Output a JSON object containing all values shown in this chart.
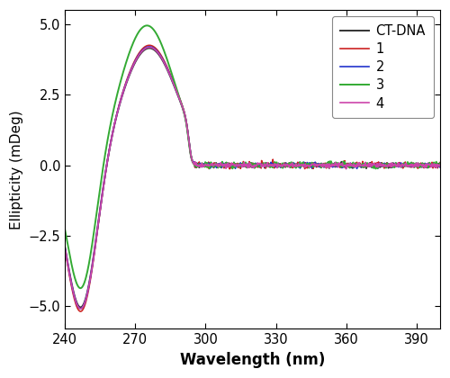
{
  "title": "",
  "xlabel": "Wavelength (nm)",
  "ylabel": "Ellipticity (mDeg)",
  "xlim": [
    240,
    400
  ],
  "ylim": [
    -5.8,
    5.5
  ],
  "xticks": [
    240,
    270,
    300,
    330,
    360,
    390
  ],
  "yticks": [
    -5.0,
    -2.5,
    0.0,
    2.5,
    5.0
  ],
  "legend_labels": [
    "CT-DNA",
    "1",
    "2",
    "3",
    "4"
  ],
  "colors": [
    "#333333",
    "#cc2222",
    "#2233cc",
    "#33aa33",
    "#cc44aa"
  ],
  "linewidths": [
    1.4,
    1.2,
    1.2,
    1.4,
    1.2
  ],
  "background_color": "#ffffff",
  "x_start": 240,
  "x_end": 400,
  "num_points": 800
}
